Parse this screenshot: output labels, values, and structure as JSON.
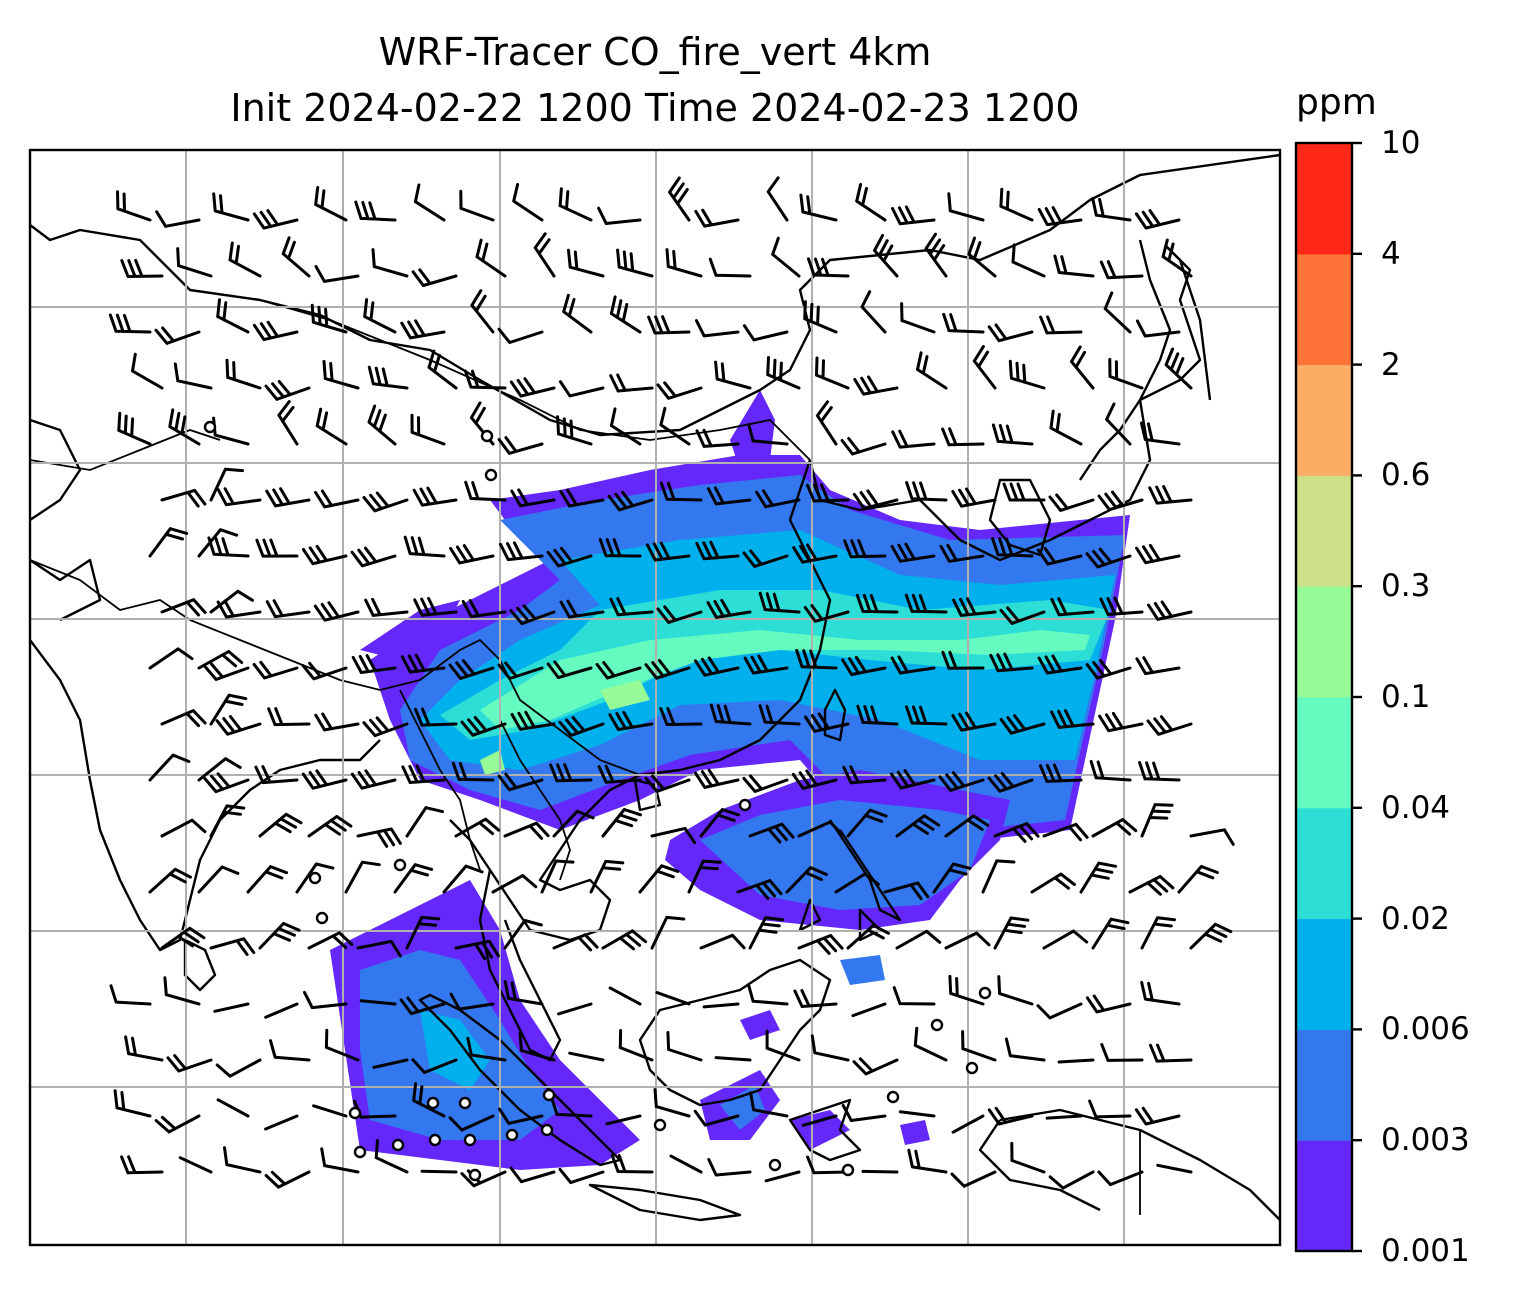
{
  "title": {
    "line1": "WRF-Tracer CO_fire_vert 4km",
    "line2": "Init 2024-02-22 1200 Time 2024-02-23 1200"
  },
  "colorbar": {
    "unit": "ppm",
    "ticks": [
      "0.001",
      "0.003",
      "0.006",
      "0.02",
      "0.04",
      "0.1",
      "0.3",
      "0.6",
      "2",
      "4",
      "10"
    ],
    "colors": [
      "#6428fa",
      "#3478f0",
      "#00b0ec",
      "#2dded6",
      "#64fac0",
      "#96fa96",
      "#cce088",
      "#fcac64",
      "#ff7238",
      "#ff2818"
    ]
  },
  "map": {
    "gridlines": true,
    "features": [
      "coastlines",
      "country-borders",
      "wind-barbs",
      "filled-contours"
    ],
    "plume_colors": {
      "lowest": "#6428fa",
      "low": "#3478f0",
      "mid": "#00b0ec",
      "mid_high": "#2dded6",
      "high": "#64fac0",
      "peak": "#96fa96"
    }
  }
}
